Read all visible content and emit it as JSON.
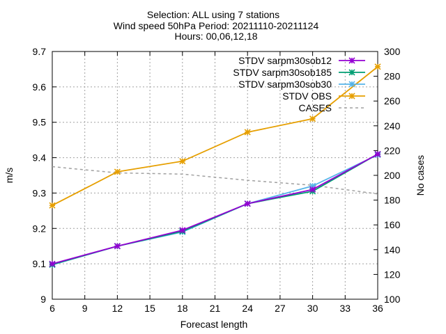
{
  "chart_data": {
    "type": "line",
    "title_lines": [
      "Selection: ALL using      7 stations",
      "Wind speed 50hPa   Period: 20211110-20211124",
      "Hours: 00,06,12,18"
    ],
    "xlabel": "Forecast length",
    "ylabel": "m/s",
    "y2label": "No cases",
    "xlim": [
      6,
      36
    ],
    "ylim": [
      9.0,
      9.7
    ],
    "y2lim": [
      100,
      300
    ],
    "xticks": [
      "6",
      "9",
      "12",
      "15",
      "18",
      "21",
      "24",
      "27",
      "30",
      "33",
      "36"
    ],
    "yticks": [
      "9",
      "9.1",
      "9.2",
      "9.3",
      "9.4",
      "9.5",
      "9.6",
      "9.7"
    ],
    "y2ticks": [
      "100",
      "120",
      "140",
      "160",
      "180",
      "200",
      "220",
      "240",
      "260",
      "280",
      "300"
    ],
    "grid": true,
    "legend_position": "top-right",
    "x": [
      6,
      12,
      18,
      24,
      30,
      36
    ],
    "series": [
      {
        "name": "STDV sar_m30_ob12",
        "legend_label": "STDV sarpm30sob12",
        "color": "#9400d3",
        "marker": "x",
        "axis": "y",
        "values": [
          9.1,
          9.15,
          9.195,
          9.27,
          9.31,
          9.41
        ]
      },
      {
        "name": "STDV sar_m30_ob185",
        "legend_label": "STDV sarpm30sob185",
        "color": "#009e73",
        "marker": "x",
        "axis": "y",
        "values": [
          9.098,
          9.15,
          9.192,
          9.27,
          9.305,
          9.41
        ]
      },
      {
        "name": "STDV sar_m30_ob30",
        "legend_label": "STDV sarpm30sob30",
        "color": "#56b4e9",
        "marker": "x",
        "axis": "y",
        "values": [
          9.097,
          9.15,
          9.19,
          9.27,
          9.32,
          9.408
        ]
      },
      {
        "name": "STDV OBS",
        "legend_label": "STDV OBS",
        "color": "#e69f00",
        "marker": "x",
        "axis": "y",
        "values": [
          9.265,
          9.36,
          9.39,
          9.472,
          9.51,
          9.657
        ]
      },
      {
        "name": "CASES",
        "legend_label": "CASES",
        "color": "#a0a0a0",
        "marker": "none",
        "dashed": true,
        "axis": "y2",
        "values": [
          207,
          202,
          201,
          196,
          192,
          185
        ]
      }
    ]
  }
}
